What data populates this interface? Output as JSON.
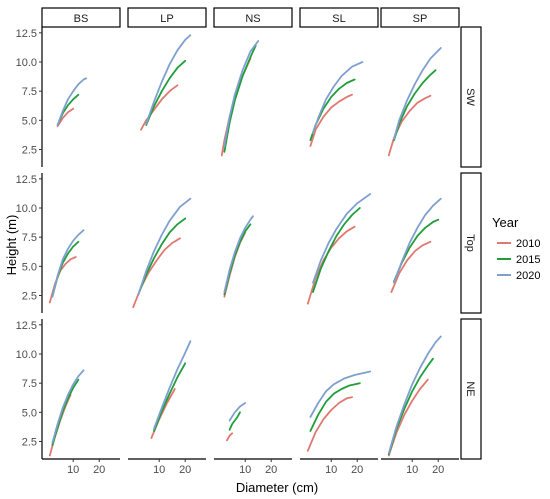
{
  "chart_data": {
    "type": "line",
    "xlabel": "Diameter (cm)",
    "ylabel": "Height (m)",
    "legend": {
      "title": "Year",
      "placement": "right",
      "entries": [
        {
          "label": "2010",
          "color": "#e07870"
        },
        {
          "label": "2015",
          "color": "#1f9e3a"
        },
        {
          "label": "2020",
          "color": "#7fa0cf"
        }
      ]
    },
    "columns": [
      "BS",
      "LP",
      "NS",
      "SL",
      "SP"
    ],
    "rows": [
      "SW",
      "Top",
      "NE"
    ],
    "ylim": [
      1,
      13
    ],
    "yticks": [
      "2.5",
      "5.0",
      "7.5",
      "10.0",
      "12.5"
    ],
    "yticks_values": [
      2.5,
      5.0,
      7.5,
      10.0,
      12.5
    ],
    "xticks": [
      "10",
      "20"
    ],
    "xticks_values": [
      10,
      20
    ],
    "xlim": [
      -2,
      28
    ],
    "grid": false,
    "panels": [
      {
        "row": "SW",
        "col": "BS",
        "series": [
          {
            "name": "2010",
            "x": [
              4,
              6,
              8,
              10
            ],
            "y": [
              4.5,
              5.2,
              5.7,
              6.0
            ]
          },
          {
            "name": "2015",
            "x": [
              4,
              6,
              8,
              10,
              12
            ],
            "y": [
              4.6,
              5.6,
              6.3,
              6.8,
              7.2
            ]
          },
          {
            "name": "2020",
            "x": [
              4,
              6,
              8,
              10,
              12,
              14,
              15
            ],
            "y": [
              4.6,
              5.8,
              6.8,
              7.5,
              8.1,
              8.5,
              8.6
            ]
          }
        ]
      },
      {
        "row": "SW",
        "col": "LP",
        "series": [
          {
            "name": "2010",
            "x": [
              3,
              5,
              8,
              11,
              14,
              17
            ],
            "y": [
              4.2,
              5.0,
              5.9,
              6.8,
              7.5,
              8.0
            ]
          },
          {
            "name": "2015",
            "x": [
              5,
              8,
              11,
              14,
              17,
              20
            ],
            "y": [
              4.6,
              6.2,
              7.5,
              8.6,
              9.5,
              10.1
            ]
          },
          {
            "name": "2020",
            "x": [
              5,
              8,
              11,
              14,
              17,
              20,
              22
            ],
            "y": [
              4.7,
              6.6,
              8.3,
              9.8,
              11.0,
              11.9,
              12.3
            ]
          }
        ]
      },
      {
        "row": "SW",
        "col": "NS",
        "series": [
          {
            "name": "2010",
            "x": [
              1,
              2,
              4,
              6,
              9,
              12
            ],
            "y": [
              2.0,
              3.3,
              5.3,
              6.9,
              8.8,
              10.3
            ]
          },
          {
            "name": "2015",
            "x": [
              2,
              4,
              6,
              9,
              12,
              14
            ],
            "y": [
              2.3,
              4.8,
              6.7,
              8.8,
              10.4,
              11.4
            ]
          },
          {
            "name": "2020",
            "x": [
              2,
              4,
              6,
              9,
              12,
              15
            ],
            "y": [
              2.8,
              5.3,
              7.2,
              9.3,
              10.9,
              11.8
            ]
          }
        ]
      },
      {
        "row": "SW",
        "col": "SL",
        "series": [
          {
            "name": "2010",
            "x": [
              2,
              4,
              7,
              10,
              13,
              16,
              18
            ],
            "y": [
              2.8,
              4.2,
              5.3,
              6.1,
              6.6,
              7.0,
              7.2
            ]
          },
          {
            "name": "2015",
            "x": [
              2,
              4,
              7,
              10,
              13,
              16,
              19
            ],
            "y": [
              3.3,
              4.6,
              6.0,
              7.0,
              7.7,
              8.2,
              8.5
            ]
          },
          {
            "name": "2020",
            "x": [
              3,
              5,
              8,
              11,
              14,
              18,
              22
            ],
            "y": [
              3.9,
              5.2,
              6.8,
              7.9,
              8.8,
              9.6,
              10.0
            ]
          }
        ]
      },
      {
        "row": "SW",
        "col": "SP",
        "series": [
          {
            "name": "2010",
            "x": [
              1,
              3,
              6,
              9,
              12,
              15,
              17
            ],
            "y": [
              2.0,
              3.5,
              4.9,
              5.8,
              6.5,
              6.9,
              7.1
            ]
          },
          {
            "name": "2015",
            "x": [
              3,
              5,
              8,
              11,
              14,
              17,
              19
            ],
            "y": [
              3.3,
              4.7,
              6.2,
              7.3,
              8.2,
              8.9,
              9.3
            ]
          },
          {
            "name": "2020",
            "x": [
              3,
              5,
              8,
              11,
              14,
              17,
              21
            ],
            "y": [
              3.4,
              5.0,
              6.7,
              8.1,
              9.3,
              10.3,
              11.2
            ]
          }
        ]
      },
      {
        "row": "Top",
        "col": "BS",
        "series": [
          {
            "name": "2010",
            "x": [
              1,
              3,
              5,
              7,
              9,
              11
            ],
            "y": [
              1.9,
              3.5,
              4.6,
              5.2,
              5.6,
              5.8
            ]
          },
          {
            "name": "2015",
            "x": [
              2,
              4,
              6,
              8,
              10,
              12
            ],
            "y": [
              2.4,
              4.1,
              5.3,
              6.1,
              6.7,
              7.1
            ]
          },
          {
            "name": "2020",
            "x": [
              2,
              4,
              6,
              8,
              10,
              12,
              14
            ],
            "y": [
              2.4,
              4.2,
              5.6,
              6.5,
              7.2,
              7.7,
              8.1
            ]
          }
        ]
      },
      {
        "row": "Top",
        "col": "LP",
        "series": [
          {
            "name": "2010",
            "x": [
              0,
              3,
              6,
              9,
              12,
              15,
              18
            ],
            "y": [
              1.5,
              3.2,
              4.5,
              5.5,
              6.4,
              7.0,
              7.4
            ]
          },
          {
            "name": "2015",
            "x": [
              2,
              5,
              8,
              11,
              14,
              17,
              20
            ],
            "y": [
              2.6,
              4.3,
              5.7,
              6.9,
              7.9,
              8.6,
              9.1
            ]
          },
          {
            "name": "2020",
            "x": [
              2,
              5,
              8,
              11,
              14,
              18,
              22
            ],
            "y": [
              2.6,
              4.6,
              6.3,
              7.7,
              8.9,
              10.1,
              10.8
            ]
          }
        ]
      },
      {
        "row": "Top",
        "col": "NS",
        "series": [
          {
            "name": "2010",
            "x": [
              2,
              4,
              6,
              8,
              10
            ],
            "y": [
              2.4,
              4.2,
              5.8,
              7.0,
              7.9
            ]
          },
          {
            "name": "2015",
            "x": [
              2,
              4,
              6,
              8,
              10,
              12
            ],
            "y": [
              2.6,
              4.4,
              5.9,
              7.1,
              8.0,
              8.6
            ]
          },
          {
            "name": "2020",
            "x": [
              2,
              4,
              6,
              8,
              10,
              12,
              13
            ],
            "y": [
              2.8,
              4.7,
              6.2,
              7.4,
              8.3,
              9.0,
              9.3
            ]
          }
        ]
      },
      {
        "row": "Top",
        "col": "SL",
        "series": [
          {
            "name": "2010",
            "x": [
              1,
              4,
              7,
              10,
              13,
              16,
              19
            ],
            "y": [
              1.8,
              4.0,
              5.5,
              6.6,
              7.4,
              8.0,
              8.4
            ]
          },
          {
            "name": "2015",
            "x": [
              3,
              6,
              9,
              12,
              15,
              18,
              21
            ],
            "y": [
              2.8,
              4.8,
              6.3,
              7.6,
              8.6,
              9.4,
              10.0
            ]
          },
          {
            "name": "2020",
            "x": [
              3,
              6,
              9,
              12,
              16,
              20,
              25
            ],
            "y": [
              3.6,
              5.5,
              7.0,
              8.2,
              9.5,
              10.4,
              11.2
            ]
          }
        ]
      },
      {
        "row": "Top",
        "col": "SP",
        "series": [
          {
            "name": "2010",
            "x": [
              2,
              5,
              8,
              11,
              14,
              17
            ],
            "y": [
              2.8,
              4.4,
              5.5,
              6.3,
              6.8,
              7.1
            ]
          },
          {
            "name": "2015",
            "x": [
              3,
              6,
              9,
              12,
              15,
              18,
              20
            ],
            "y": [
              3.7,
              5.3,
              6.6,
              7.6,
              8.3,
              8.8,
              9.0
            ]
          },
          {
            "name": "2020",
            "x": [
              3,
              6,
              9,
              12,
              15,
              18,
              21
            ],
            "y": [
              3.6,
              5.4,
              7.0,
              8.3,
              9.4,
              10.2,
              10.8
            ]
          }
        ]
      },
      {
        "row": "NE",
        "col": "BS",
        "series": [
          {
            "name": "2010",
            "x": [
              1,
              3,
              5,
              7,
              9
            ],
            "y": [
              1.3,
              2.9,
              4.3,
              5.5,
              6.5
            ]
          },
          {
            "name": "2015",
            "x": [
              2,
              4,
              6,
              8,
              10,
              12
            ],
            "y": [
              2.2,
              3.7,
              5.1,
              6.2,
              7.1,
              7.8
            ]
          },
          {
            "name": "2020",
            "x": [
              2,
              4,
              6,
              8,
              10,
              12,
              14
            ],
            "y": [
              2.4,
              4.0,
              5.4,
              6.5,
              7.4,
              8.1,
              8.6
            ]
          }
        ]
      },
      {
        "row": "NE",
        "col": "LP",
        "series": [
          {
            "name": "2010",
            "x": [
              7,
              10,
              13,
              16
            ],
            "y": [
              2.8,
              4.4,
              5.8,
              7.0
            ]
          },
          {
            "name": "2015",
            "x": [
              8,
              11,
              14,
              17,
              20
            ],
            "y": [
              3.4,
              5.1,
              6.6,
              8.0,
              9.2
            ]
          },
          {
            "name": "2020",
            "x": [
              8,
              11,
              14,
              17,
              20,
              22
            ],
            "y": [
              3.6,
              5.4,
              7.1,
              8.7,
              10.1,
              11.1
            ]
          }
        ]
      },
      {
        "row": "NE",
        "col": "NS",
        "series": [
          {
            "name": "2010",
            "x": [
              3,
              4,
              5
            ],
            "y": [
              2.6,
              3.0,
              3.2
            ]
          },
          {
            "name": "2015",
            "x": [
              4,
              5,
              7,
              8
            ],
            "y": [
              3.5,
              4.0,
              4.6,
              5.0
            ]
          },
          {
            "name": "2020",
            "x": [
              4,
              6,
              8,
              10
            ],
            "y": [
              4.3,
              5.0,
              5.5,
              5.8
            ]
          }
        ]
      },
      {
        "row": "NE",
        "col": "SL",
        "series": [
          {
            "name": "2010",
            "x": [
              1,
              4,
              7,
              10,
              13,
              16,
              18
            ],
            "y": [
              1.7,
              3.3,
              4.4,
              5.2,
              5.8,
              6.2,
              6.3
            ]
          },
          {
            "name": "2015",
            "x": [
              2,
              5,
              8,
              11,
              14,
              17,
              21
            ],
            "y": [
              3.4,
              4.8,
              5.9,
              6.6,
              7.0,
              7.3,
              7.5
            ]
          },
          {
            "name": "2020",
            "x": [
              2,
              5,
              8,
              11,
              15,
              19,
              25
            ],
            "y": [
              4.6,
              5.8,
              6.8,
              7.4,
              7.9,
              8.2,
              8.5
            ]
          }
        ]
      },
      {
        "row": "NE",
        "col": "SP",
        "series": [
          {
            "name": "2010",
            "x": [
              1,
              4,
              7,
              10,
              13,
              16
            ],
            "y": [
              1.3,
              3.3,
              4.8,
              6.0,
              7.0,
              7.8
            ]
          },
          {
            "name": "2015",
            "x": [
              1,
              4,
              7,
              10,
              13,
              16,
              18
            ],
            "y": [
              1.4,
              3.6,
              5.3,
              6.8,
              8.0,
              9.0,
              9.6
            ]
          },
          {
            "name": "2020",
            "x": [
              1,
              4,
              7,
              10,
              13,
              16,
              19,
              21
            ],
            "y": [
              1.5,
              3.8,
              5.7,
              7.4,
              8.8,
              10.0,
              11.0,
              11.5
            ]
          }
        ]
      }
    ]
  }
}
